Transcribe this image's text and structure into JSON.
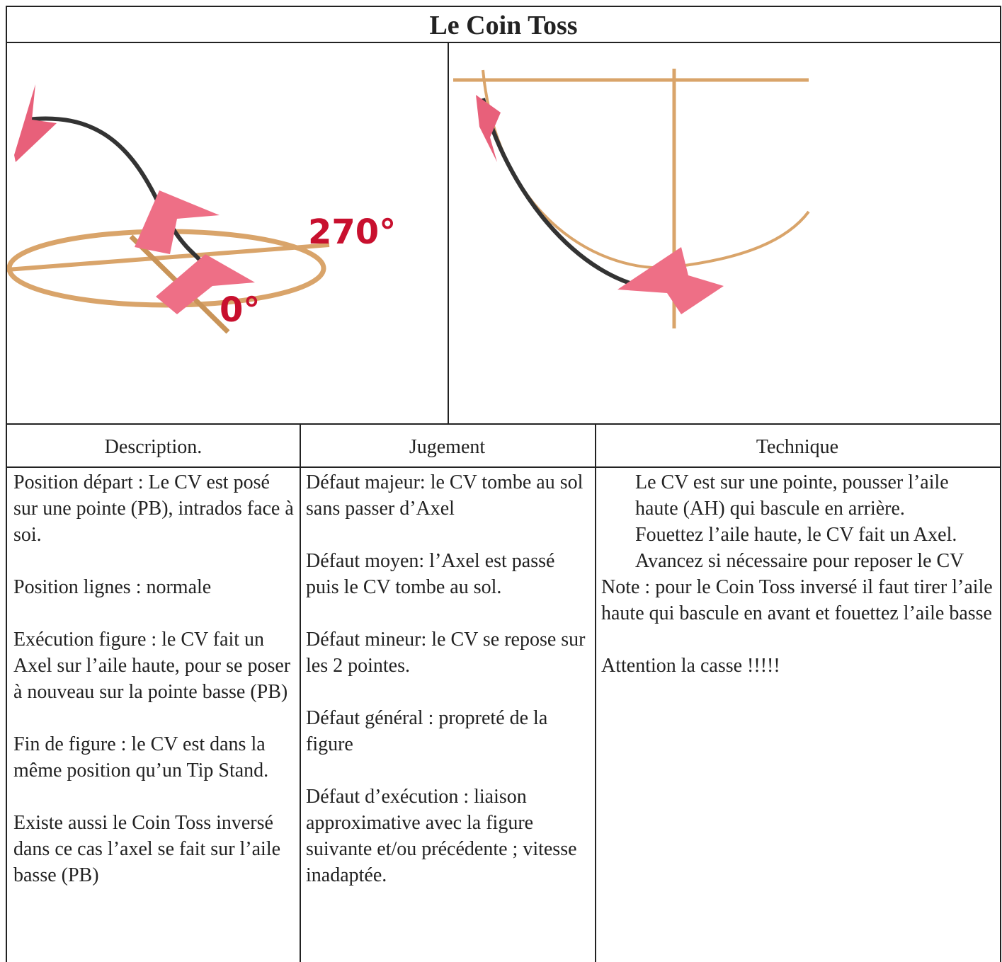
{
  "header": {
    "title": "Le Coin Toss"
  },
  "images": [
    {
      "labels": [
        "270°",
        "0°"
      ]
    }
  ],
  "table": {
    "headers": [
      "Description.",
      "Jugement",
      "Technique"
    ],
    "columns": [
      [
        "Position départ : Le CV est posé sur une pointe (PB), intrados face à soi.",
        "Position lignes : normale",
        "Exécution figure : le CV fait un Axel sur l’aile haute, pour se poser à nouveau sur la pointe basse (PB)",
        "Fin de figure : le CV est dans la même position qu’un Tip Stand.",
        "Existe aussi le Coin Toss inversé dans ce cas l’axel se fait sur l’aile basse (PB)"
      ],
      [
        "Défaut majeur: le CV tombe au sol sans passer d’Axel",
        "Défaut moyen: l’Axel est passé puis le CV tombe au sol.",
        "Défaut mineur: le CV se repose sur les 2 pointes.",
        "Défaut général : propreté de la figure",
        "Défaut d’exécution : liaison approximative avec la figure suivante  et/ou précédente ; vitesse inadaptée."
      ],
      [
        "Le CV est sur une pointe, pousser l’aile haute (AH) qui bascule en arrière.",
        "Fouettez l’aile haute, le CV fait un Axel.",
        "Avancez  si nécessaire pour reposer le CV",
        "Note : pour le Coin Toss inversé  il faut tirer l’aile haute qui bascule en avant et fouettez l’aile basse",
        "Attention la casse !!!!!"
      ]
    ]
  }
}
